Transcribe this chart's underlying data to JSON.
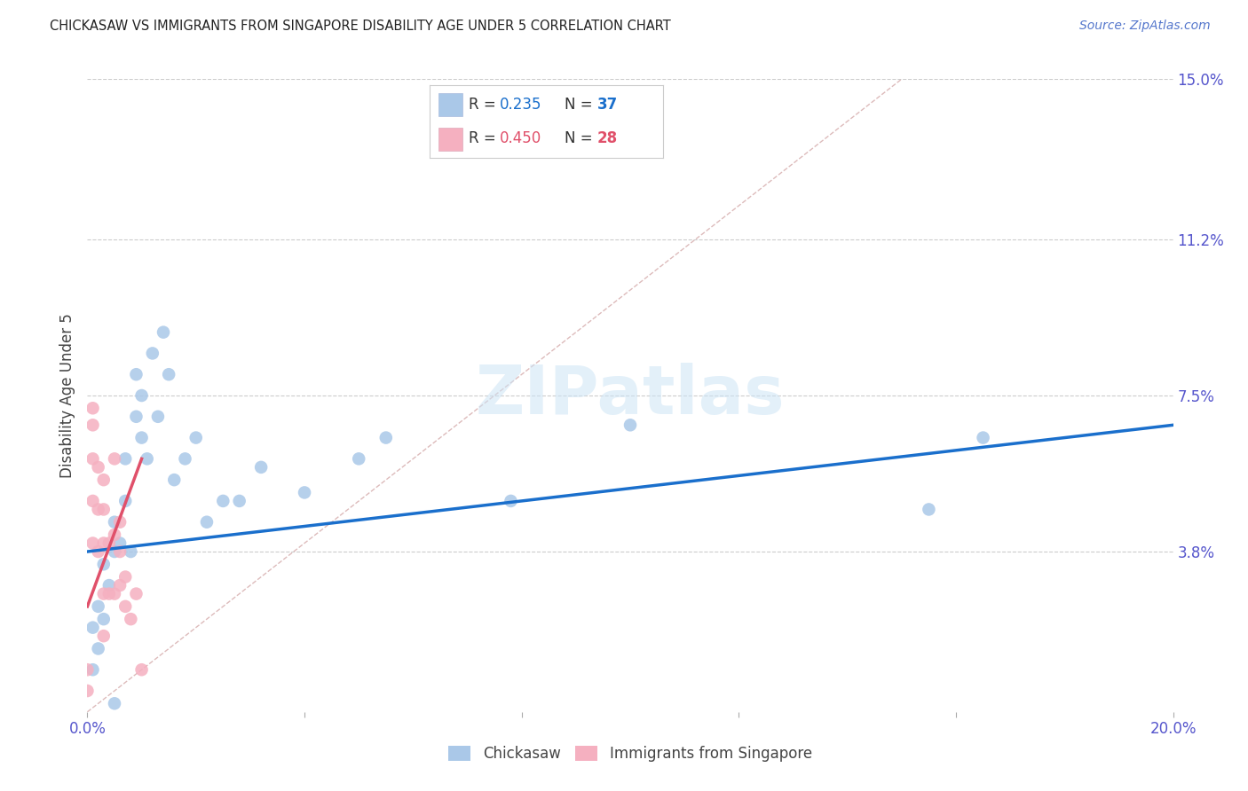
{
  "title": "CHICKASAW VS IMMIGRANTS FROM SINGAPORE DISABILITY AGE UNDER 5 CORRELATION CHART",
  "source": "Source: ZipAtlas.com",
  "ylabel_label": "Disability Age Under 5",
  "x_min": 0.0,
  "x_max": 0.2,
  "y_min": 0.0,
  "y_max": 0.15,
  "x_ticks": [
    0.0,
    0.04,
    0.08,
    0.12,
    0.16,
    0.2
  ],
  "x_tick_labels": [
    "0.0%",
    "",
    "",
    "",
    "",
    "20.0%"
  ],
  "y_tick_labels_right": [
    "15.0%",
    "11.2%",
    "7.5%",
    "3.8%",
    ""
  ],
  "y_tick_values_right": [
    0.15,
    0.112,
    0.075,
    0.038,
    0.0
  ],
  "chickasaw_R": 0.235,
  "chickasaw_N": 37,
  "singapore_R": 0.45,
  "singapore_N": 28,
  "chickasaw_color": "#aac8e8",
  "singapore_color": "#f5b0c0",
  "trendline_chickasaw_color": "#1a6fcc",
  "trendline_singapore_color": "#e0506a",
  "diagonal_color": "#ddbbbb",
  "background_color": "#ffffff",
  "watermark": "ZIPatlas",
  "legend_labels": [
    "Chickasaw",
    "Immigrants from Singapore"
  ],
  "chickasaw_x": [
    0.001,
    0.001,
    0.002,
    0.002,
    0.003,
    0.003,
    0.004,
    0.005,
    0.005,
    0.006,
    0.007,
    0.007,
    0.008,
    0.009,
    0.009,
    0.01,
    0.01,
    0.011,
    0.012,
    0.013,
    0.014,
    0.015,
    0.016,
    0.018,
    0.02,
    0.022,
    0.025,
    0.028,
    0.032,
    0.04,
    0.05,
    0.055,
    0.078,
    0.1,
    0.155,
    0.165,
    0.005
  ],
  "chickasaw_y": [
    0.01,
    0.02,
    0.015,
    0.025,
    0.022,
    0.035,
    0.03,
    0.038,
    0.045,
    0.04,
    0.05,
    0.06,
    0.038,
    0.07,
    0.08,
    0.065,
    0.075,
    0.06,
    0.085,
    0.07,
    0.09,
    0.08,
    0.055,
    0.06,
    0.065,
    0.045,
    0.05,
    0.05,
    0.058,
    0.052,
    0.06,
    0.065,
    0.05,
    0.068,
    0.048,
    0.065,
    0.002
  ],
  "singapore_x": [
    0.0,
    0.0,
    0.001,
    0.001,
    0.001,
    0.001,
    0.002,
    0.002,
    0.002,
    0.003,
    0.003,
    0.003,
    0.003,
    0.003,
    0.004,
    0.004,
    0.005,
    0.005,
    0.005,
    0.006,
    0.006,
    0.006,
    0.007,
    0.007,
    0.008,
    0.009,
    0.01,
    0.001
  ],
  "singapore_y": [
    0.01,
    0.005,
    0.04,
    0.05,
    0.06,
    0.068,
    0.038,
    0.048,
    0.058,
    0.018,
    0.028,
    0.04,
    0.048,
    0.055,
    0.028,
    0.04,
    0.028,
    0.042,
    0.06,
    0.03,
    0.038,
    0.045,
    0.025,
    0.032,
    0.022,
    0.028,
    0.01,
    0.072
  ],
  "trendline_blue_x0": 0.0,
  "trendline_blue_x1": 0.2,
  "trendline_blue_y0": 0.038,
  "trendline_blue_y1": 0.068,
  "trendline_pink_x0": 0.0,
  "trendline_pink_x1": 0.01,
  "trendline_pink_y0": 0.025,
  "trendline_pink_y1": 0.06
}
